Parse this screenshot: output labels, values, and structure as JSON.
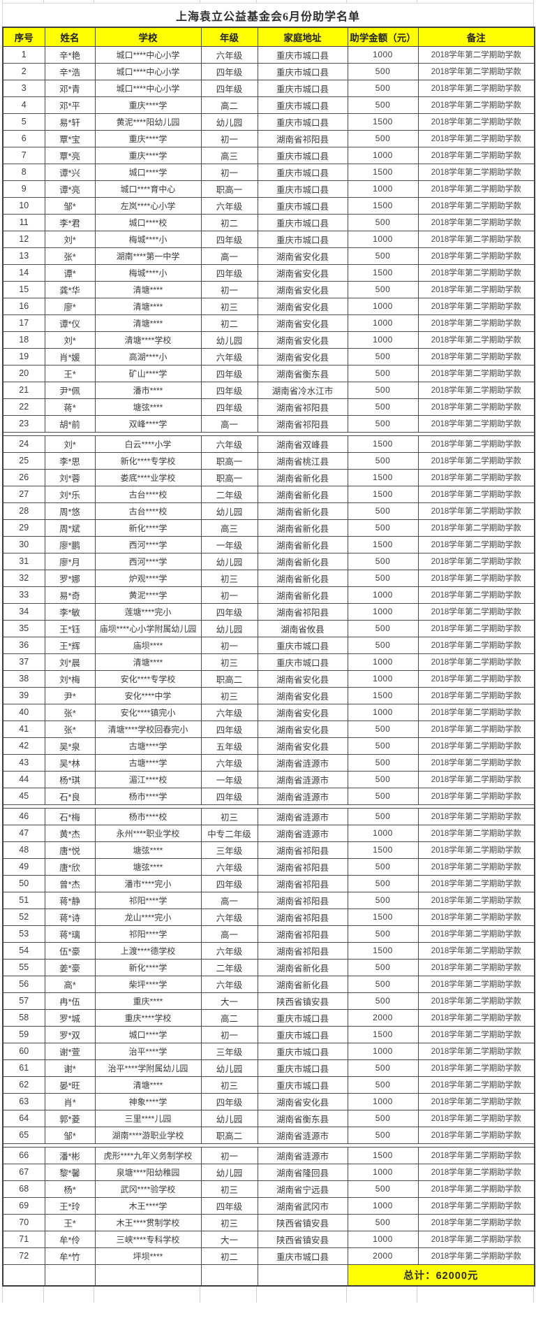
{
  "title": "上海袁立公益基金会6月份助学名单",
  "colors": {
    "header_bg": "#ffff00",
    "total_bg": "#ffff00",
    "border": "#4a4a4a",
    "text": "#3b3b3b"
  },
  "table": {
    "headers": [
      "序号",
      "姓名",
      "学校",
      "年级",
      "家庭地址",
      "助学金额（元）",
      "备注"
    ],
    "section_breaks_after": [
      23,
      45,
      65
    ],
    "total_label": "总计：62000元",
    "rows": [
      [
        "1",
        "辛*艳",
        "城口****中心小学",
        "六年级",
        "重庆市城口县",
        "1000",
        "2018学年第二学期助学款"
      ],
      [
        "2",
        "辛*浩",
        "城口****中心小学",
        "四年级",
        "重庆市城口县",
        "500",
        "2018学年第二学期助学款"
      ],
      [
        "3",
        "邓*青",
        "城口****中心小学",
        "四年级",
        "重庆市城口县",
        "500",
        "2018学年第二学期助学款"
      ],
      [
        "4",
        "邓*平",
        "重庆****学",
        "高二",
        "重庆市城口县",
        "500",
        "2018学年第二学期助学款"
      ],
      [
        "5",
        "易*轩",
        "黄泥****阳幼儿园",
        "幼儿园",
        "重庆市城口县",
        "1500",
        "2018学年第二学期助学款"
      ],
      [
        "6",
        "覃*宝",
        "重庆****学",
        "初一",
        "湖南省祁阳县",
        "500",
        "2018学年第二学期助学款"
      ],
      [
        "7",
        "覃*亮",
        "重庆****学",
        "高三",
        "重庆市城口县",
        "1000",
        "2018学年第二学期助学款"
      ],
      [
        "8",
        "谭*兴",
        "城口****学",
        "初一",
        "重庆市城口县",
        "1500",
        "2018学年第二学期助学款"
      ],
      [
        "9",
        "谭*亮",
        "城口****育中心",
        "职高一",
        "重庆市城口县",
        "1000",
        "2018学年第二学期助学款"
      ],
      [
        "10",
        "邹*",
        "左岚****心小学",
        "六年级",
        "重庆市城口县",
        "1500",
        "2018学年第二学期助学款"
      ],
      [
        "11",
        "李*君",
        "城口****校",
        "初二",
        "重庆市城口县",
        "500",
        "2018学年第二学期助学款"
      ],
      [
        "12",
        "刘*",
        "梅城****小",
        "四年级",
        "重庆市城口县",
        "1000",
        "2018学年第二学期助学款"
      ],
      [
        "13",
        "张*",
        "湖南****第一中学",
        "高一",
        "湖南省安化县",
        "500",
        "2018学年第二学期助学款"
      ],
      [
        "14",
        "谭*",
        "梅城****小",
        "四年级",
        "湖南省安化县",
        "1500",
        "2018学年第二学期助学款"
      ],
      [
        "15",
        "龚*华",
        "清塘****",
        "初一",
        "湖南省安化县",
        "500",
        "2018学年第二学期助学款"
      ],
      [
        "16",
        "廖*",
        "清塘****",
        "初三",
        "湖南省安化县",
        "1000",
        "2018学年第二学期助学款"
      ],
      [
        "17",
        "谭*仪",
        "清塘****",
        "初二",
        "湖南省安化县",
        "1000",
        "2018学年第二学期助学款"
      ],
      [
        "18",
        "刘*",
        "清塘****学校",
        "幼儿园",
        "湖南省安化县",
        "1000",
        "2018学年第二学期助学款"
      ],
      [
        "19",
        "肖*媛",
        "高湖****小",
        "六年级",
        "湖南省安化县",
        "500",
        "2018学年第二学期助学款"
      ],
      [
        "20",
        "王*",
        "矿山****学",
        "四年级",
        "湖南省衡东县",
        "500",
        "2018学年第二学期助学款"
      ],
      [
        "21",
        "尹*佩",
        "潘市****",
        "四年级",
        "湖南省冷水江市",
        "500",
        "2018学年第二学期助学款"
      ],
      [
        "22",
        "蒋*",
        "塘弦****",
        "四年级",
        "湖南省祁阳县",
        "500",
        "2018学年第二学期助学款"
      ],
      [
        "23",
        "胡*前",
        "双峰****学",
        "高一",
        "湖南省祁阳县",
        "500",
        "2018学年第二学期助学款"
      ],
      [
        "24",
        "刘*",
        "白云****小学",
        "六年级",
        "湖南省双峰县",
        "1500",
        "2018学年第二学期助学款"
      ],
      [
        "25",
        "李*思",
        "新化****专学校",
        "职高一",
        "湖南省桃江县",
        "500",
        "2018学年第二学期助学款"
      ],
      [
        "26",
        "刘*蓉",
        "娄底****业学校",
        "职高一",
        "湖南省新化县",
        "1500",
        "2018学年第二学期助学款"
      ],
      [
        "27",
        "刘*乐",
        "古台****校",
        "二年级",
        "湖南省新化县",
        "1500",
        "2018学年第二学期助学款"
      ],
      [
        "28",
        "周*悠",
        "古台****校",
        "幼儿园",
        "湖南省新化县",
        "500",
        "2018学年第二学期助学款"
      ],
      [
        "29",
        "周*斌",
        "新化****学",
        "高三",
        "湖南省新化县",
        "500",
        "2018学年第二学期助学款"
      ],
      [
        "30",
        "廖*鹏",
        "西河****学",
        "一年级",
        "湖南省新化县",
        "1500",
        "2018学年第二学期助学款"
      ],
      [
        "31",
        "廖*月",
        "西河****学",
        "幼儿园",
        "湖南省新化县",
        "500",
        "2018学年第二学期助学款"
      ],
      [
        "32",
        "罗*娜",
        "炉观****学",
        "初三",
        "湖南省新化县",
        "500",
        "2018学年第二学期助学款"
      ],
      [
        "33",
        "易*奇",
        "黄泥****学",
        "初一",
        "湖南省新化县",
        "1000",
        "2018学年第二学期助学款"
      ],
      [
        "34",
        "李*敏",
        "莲塘****完小",
        "四年级",
        "湖南省祁阳县",
        "1000",
        "2018学年第二学期助学款"
      ],
      [
        "35",
        "王*钰",
        "庙坝****心小学附属幼儿园",
        "幼儿园",
        "湖南省攸县",
        "500",
        "2018学年第二学期助学款"
      ],
      [
        "36",
        "王*辉",
        "庙坝****",
        "初一",
        "重庆市城口县",
        "500",
        "2018学年第二学期助学款"
      ],
      [
        "37",
        "刘*晨",
        "清塘****",
        "初三",
        "重庆市城口县",
        "1000",
        "2018学年第二学期助学款"
      ],
      [
        "38",
        "刘*梅",
        "安化****专学校",
        "职高二",
        "湖南省安化县",
        "1000",
        "2018学年第二学期助学款"
      ],
      [
        "39",
        "尹*",
        "安化****中学",
        "初三",
        "湖南省安化县",
        "1500",
        "2018学年第二学期助学款"
      ],
      [
        "40",
        "张*",
        "安化****镇完小",
        "六年级",
        "湖南省安化县",
        "1000",
        "2018学年第二学期助学款"
      ],
      [
        "41",
        "张*",
        "清塘****学校回春完小",
        "四年级",
        "湖南省安化县",
        "500",
        "2018学年第二学期助学款"
      ],
      [
        "42",
        "吴*泉",
        "古塘****学",
        "五年级",
        "湖南省安化县",
        "500",
        "2018学年第二学期助学款"
      ],
      [
        "43",
        "吴*林",
        "古塘****学",
        "六年级",
        "湖南省涟源市",
        "500",
        "2018学年第二学期助学款"
      ],
      [
        "44",
        "杨*琪",
        "湄江****校",
        "一年级",
        "湖南省涟源市",
        "500",
        "2018学年第二学期助学款"
      ],
      [
        "45",
        "石*良",
        "杨市****学",
        "四年级",
        "湖南省涟源市",
        "500",
        "2018学年第二学期助学款"
      ],
      [
        "46",
        "石*梅",
        "杨市****校",
        "初三",
        "湖南省涟源市",
        "500",
        "2018学年第二学期助学款"
      ],
      [
        "47",
        "黄*杰",
        "永州****职业学校",
        "中专二年级",
        "湖南省涟源市",
        "1000",
        "2018学年第二学期助学款"
      ],
      [
        "48",
        "唐*悦",
        "塘弦****",
        "三年级",
        "湖南省祁阳县",
        "1500",
        "2018学年第二学期助学款"
      ],
      [
        "49",
        "唐*欣",
        "塘弦****",
        "六年级",
        "湖南省祁阳县",
        "500",
        "2018学年第二学期助学款"
      ],
      [
        "50",
        "曾*杰",
        "潘市****完小",
        "四年级",
        "湖南省祁阳县",
        "500",
        "2018学年第二学期助学款"
      ],
      [
        "51",
        "蒋*静",
        "祁阳****学",
        "高一",
        "湖南省祁阳县",
        "500",
        "2018学年第二学期助学款"
      ],
      [
        "52",
        "蒋*诗",
        "龙山****完小",
        "六年级",
        "湖南省祁阳县",
        "1500",
        "2018学年第二学期助学款"
      ],
      [
        "53",
        "蒋*璃",
        "祁阳****学",
        "高一",
        "湖南省祁阳县",
        "500",
        "2018学年第二学期助学款"
      ],
      [
        "54",
        "伍*豪",
        "上渡****德学校",
        "六年级",
        "湖南省祁阳县",
        "1500",
        "2018学年第二学期助学款"
      ],
      [
        "55",
        "姜*豪",
        "新化****学",
        "二年级",
        "湖南省新化县",
        "500",
        "2018学年第二学期助学款"
      ],
      [
        "56",
        "高*",
        "柴坪****学",
        "六年级",
        "湖南省新化县",
        "500",
        "2018学年第二学期助学款"
      ],
      [
        "57",
        "冉*伍",
        "重庆****",
        "大一",
        "陕西省镇安县",
        "500",
        "2018学年第二学期助学款"
      ],
      [
        "58",
        "罗*城",
        "重庆****学校",
        "高二",
        "重庆市城口县",
        "2000",
        "2018学年第二学期助学款"
      ],
      [
        "59",
        "罗*双",
        "城口****学",
        "初一",
        "重庆市城口县",
        "1500",
        "2018学年第二学期助学款"
      ],
      [
        "60",
        "谢*萱",
        "治平****学",
        "三年级",
        "重庆市城口县",
        "1000",
        "2018学年第二学期助学款"
      ],
      [
        "61",
        "谢*",
        "治平****学附属幼儿园",
        "幼儿园",
        "重庆市城口县",
        "500",
        "2018学年第二学期助学款"
      ],
      [
        "62",
        "晏*旺",
        "清塘****",
        "初三",
        "重庆市城口县",
        "500",
        "2018学年第二学期助学款"
      ],
      [
        "63",
        "肖*",
        "神象****学",
        "四年级",
        "湖南省安化县",
        "1000",
        "2018学年第二学期助学款"
      ],
      [
        "64",
        "郭*菱",
        "三里****儿园",
        "幼儿园",
        "湖南省衡东县",
        "500",
        "2018学年第二学期助学款"
      ],
      [
        "65",
        "邹*",
        "湖南****游职业学校",
        "职高二",
        "湖南省涟源市",
        "500",
        "2018学年第二学期助学款"
      ],
      [
        "66",
        "潘*彬",
        "虎形****九年义务制学校",
        "初一",
        "湖南省涟源市",
        "1500",
        "2018学年第二学期助学款"
      ],
      [
        "67",
        "黎*馨",
        "泉塘****阳幼稚园",
        "幼儿园",
        "湖南省隆回县",
        "1000",
        "2018学年第二学期助学款"
      ],
      [
        "68",
        "杨*",
        "武冈****验学校",
        "初三",
        "湖南省宁远县",
        "500",
        "2018学年第二学期助学款"
      ],
      [
        "69",
        "王*玲",
        "木王****学",
        "四年级",
        "湖南省武冈市",
        "1000",
        "2018学年第二学期助学款"
      ],
      [
        "70",
        "王*",
        "木王****贯制学校",
        "初三",
        "陕西省镇安县",
        "500",
        "2018学年第二学期助学款"
      ],
      [
        "71",
        "牟*伶",
        "三峡****专科学校",
        "大一",
        "陕西省镇安县",
        "1000",
        "2018学年第二学期助学款"
      ],
      [
        "72",
        "牟*竹",
        "坪坝****",
        "初二",
        "重庆市城口县",
        "2000",
        "2018学年第二学期助学款"
      ]
    ]
  }
}
